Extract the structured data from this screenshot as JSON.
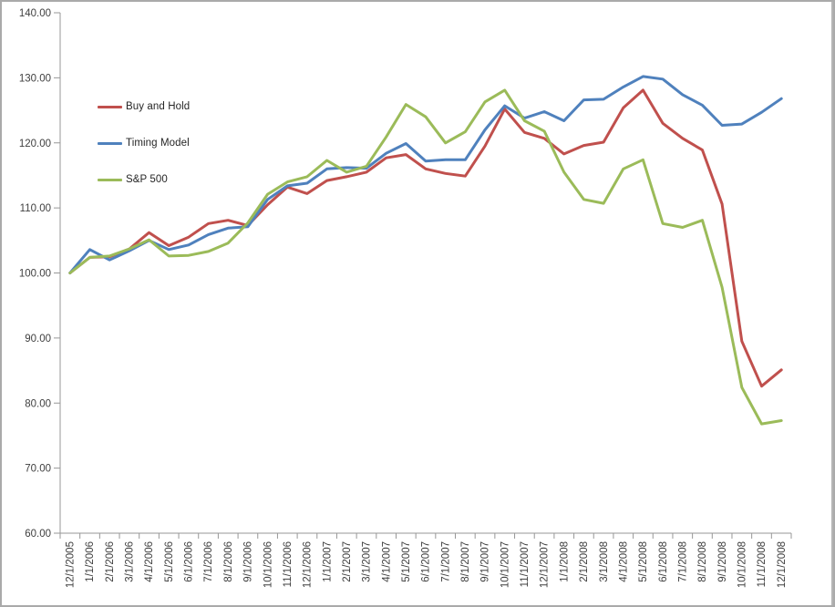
{
  "chart_data": {
    "type": "line",
    "title": "",
    "categories": [
      "12/1/2005",
      "1/1/2006",
      "2/1/2006",
      "3/1/2006",
      "4/1/2006",
      "5/1/2006",
      "6/1/2006",
      "7/1/2006",
      "8/1/2006",
      "9/1/2006",
      "10/1/2006",
      "11/1/2006",
      "12/1/2006",
      "1/1/2007",
      "2/1/2007",
      "3/1/2007",
      "4/1/2007",
      "5/1/2007",
      "6/1/2007",
      "7/1/2007",
      "8/1/2007",
      "9/1/2007",
      "10/1/2007",
      "11/1/2007",
      "12/1/2007",
      "1/1/2008",
      "2/1/2008",
      "3/1/2008",
      "4/1/2008",
      "5/1/2008",
      "6/1/2008",
      "7/1/2008",
      "8/1/2008",
      "9/1/2008",
      "10/1/2008",
      "11/1/2008",
      "12/1/2008"
    ],
    "series": [
      {
        "name": "Buy and Hold",
        "color": "#C0504D",
        "values": [
          100.0,
          102.4,
          102.5,
          103.7,
          106.2,
          104.2,
          105.5,
          107.6,
          108.1,
          107.3,
          110.5,
          113.2,
          112.2,
          114.2,
          114.8,
          115.5,
          117.7,
          118.2,
          116.0,
          115.3,
          114.9,
          119.5,
          125.2,
          121.6,
          120.7,
          118.3,
          119.6,
          120.1,
          125.4,
          128.1,
          123.0,
          120.7,
          118.9,
          110.6,
          89.5,
          82.6,
          85.1
        ]
      },
      {
        "name": "Timing Model",
        "color": "#4F81BD",
        "values": [
          100.0,
          103.6,
          102.0,
          103.4,
          105.0,
          103.6,
          104.3,
          105.9,
          106.9,
          107.1,
          111.3,
          113.4,
          113.8,
          116.0,
          116.2,
          116.1,
          118.4,
          119.9,
          117.2,
          117.4,
          117.4,
          122.0,
          125.7,
          123.8,
          124.8,
          123.4,
          126.6,
          126.7,
          128.6,
          130.2,
          129.8,
          127.4,
          125.8,
          122.7,
          122.9,
          124.7,
          126.8
        ]
      },
      {
        "name": "S&P 500",
        "color": "#9BBB59",
        "values": [
          100.0,
          102.4,
          102.6,
          103.7,
          105.1,
          102.6,
          102.7,
          103.3,
          104.6,
          107.7,
          112.1,
          114.0,
          114.8,
          117.3,
          115.5,
          116.4,
          120.9,
          125.9,
          124.0,
          120.0,
          121.7,
          126.3,
          128.1,
          123.4,
          121.8,
          115.5,
          111.3,
          110.7,
          116.0,
          117.4,
          107.6,
          107.0,
          108.1,
          97.8,
          82.4,
          76.8,
          77.3
        ]
      }
    ],
    "ylim": [
      60,
      140
    ],
    "y_ticks": [
      60,
      70,
      80,
      90,
      100,
      110,
      120,
      130,
      140
    ],
    "y_tick_labels": [
      "60.00",
      "70.00",
      "80.00",
      "90.00",
      "100.00",
      "110.00",
      "120.00",
      "130.00",
      "140.00"
    ],
    "grid": false,
    "legend_position": "upper-left-inside",
    "axis_color": "#979797",
    "label_color": "#3f3f3f"
  }
}
